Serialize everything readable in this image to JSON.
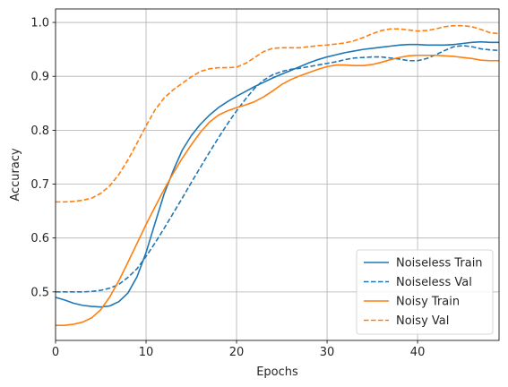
{
  "chart_data": {
    "type": "line",
    "title": "",
    "xlabel": "Epochs",
    "ylabel": "Accuracy",
    "xlim": [
      0,
      49
    ],
    "ylim": [
      0.41,
      1.025
    ],
    "xticks": [
      0,
      10,
      20,
      30,
      40
    ],
    "yticks": [
      0.5,
      0.6,
      0.7,
      0.8,
      0.9,
      1.0
    ],
    "grid": true,
    "legend_position": "lower-right",
    "x": [
      0,
      1,
      2,
      3,
      4,
      5,
      6,
      7,
      8,
      9,
      10,
      11,
      12,
      13,
      14,
      15,
      16,
      17,
      18,
      19,
      20,
      21,
      22,
      23,
      24,
      25,
      26,
      27,
      28,
      29,
      30,
      31,
      32,
      33,
      34,
      35,
      36,
      37,
      38,
      39,
      40,
      41,
      42,
      43,
      44,
      45,
      46,
      47,
      48,
      49
    ],
    "series": [
      {
        "name": "Noiseless Train",
        "color": "#1f77b4",
        "dash": "solid",
        "values": [
          0.49,
          0.485,
          0.479,
          0.475,
          0.473,
          0.472,
          0.474,
          0.482,
          0.498,
          0.528,
          0.573,
          0.628,
          0.682,
          0.725,
          0.763,
          0.79,
          0.811,
          0.828,
          0.842,
          0.853,
          0.863,
          0.872,
          0.881,
          0.889,
          0.897,
          0.904,
          0.911,
          0.918,
          0.925,
          0.931,
          0.936,
          0.94,
          0.944,
          0.947,
          0.95,
          0.952,
          0.954,
          0.956,
          0.958,
          0.959,
          0.959,
          0.958,
          0.958,
          0.958,
          0.959,
          0.961,
          0.963,
          0.964,
          0.963,
          0.963
        ]
      },
      {
        "name": "Noiseless Val",
        "color": "#1f77b4",
        "dash": "dashed",
        "values": [
          0.5,
          0.5,
          0.5,
          0.5,
          0.501,
          0.503,
          0.507,
          0.514,
          0.527,
          0.543,
          0.566,
          0.591,
          0.618,
          0.646,
          0.674,
          0.703,
          0.731,
          0.759,
          0.786,
          0.812,
          0.836,
          0.858,
          0.878,
          0.893,
          0.903,
          0.909,
          0.913,
          0.915,
          0.918,
          0.921,
          0.924,
          0.927,
          0.931,
          0.934,
          0.935,
          0.936,
          0.936,
          0.934,
          0.932,
          0.929,
          0.929,
          0.933,
          0.94,
          0.948,
          0.955,
          0.957,
          0.955,
          0.951,
          0.949,
          0.948
        ]
      },
      {
        "name": "Noisy Train",
        "color": "#ff7f0e",
        "dash": "solid",
        "values": [
          0.438,
          0.438,
          0.44,
          0.444,
          0.452,
          0.467,
          0.491,
          0.521,
          0.555,
          0.59,
          0.625,
          0.658,
          0.69,
          0.72,
          0.748,
          0.773,
          0.796,
          0.815,
          0.828,
          0.836,
          0.842,
          0.847,
          0.853,
          0.862,
          0.873,
          0.885,
          0.894,
          0.901,
          0.907,
          0.913,
          0.918,
          0.921,
          0.921,
          0.92,
          0.92,
          0.922,
          0.926,
          0.931,
          0.935,
          0.938,
          0.939,
          0.939,
          0.939,
          0.938,
          0.937,
          0.935,
          0.933,
          0.93,
          0.929,
          0.929
        ]
      },
      {
        "name": "Noisy Val",
        "color": "#ff7f0e",
        "dash": "dashed",
        "values": [
          0.667,
          0.667,
          0.668,
          0.67,
          0.674,
          0.683,
          0.697,
          0.718,
          0.745,
          0.776,
          0.808,
          0.838,
          0.86,
          0.875,
          0.887,
          0.899,
          0.909,
          0.914,
          0.916,
          0.916,
          0.917,
          0.924,
          0.935,
          0.946,
          0.952,
          0.953,
          0.953,
          0.953,
          0.955,
          0.957,
          0.958,
          0.96,
          0.962,
          0.966,
          0.972,
          0.979,
          0.985,
          0.988,
          0.988,
          0.986,
          0.984,
          0.985,
          0.988,
          0.992,
          0.994,
          0.994,
          0.992,
          0.987,
          0.981,
          0.979
        ]
      }
    ]
  }
}
